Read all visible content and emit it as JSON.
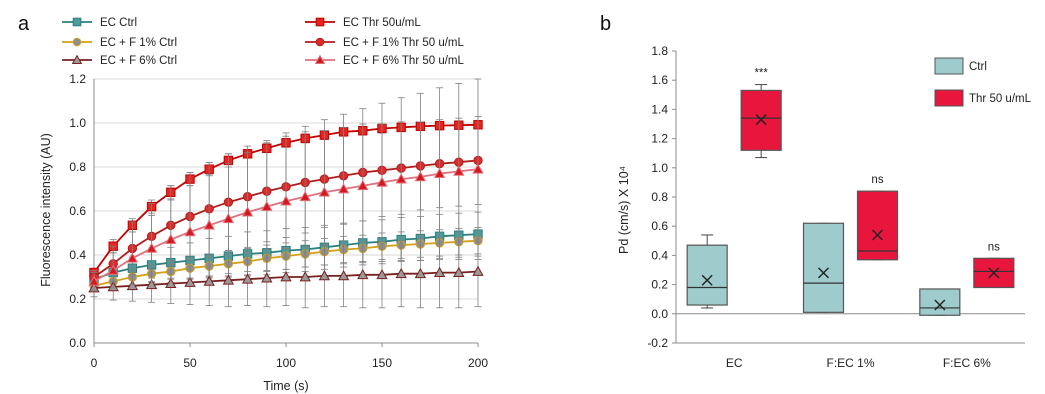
{
  "chart_data": [
    {
      "panel": "a",
      "type": "line",
      "xlabel": "Time (s)",
      "ylabel": "Fluorescence intensity (AU)",
      "xlim": [
        0,
        200
      ],
      "ylim": [
        0,
        1.2
      ],
      "x_ticks": [
        "0",
        "50",
        "100",
        "150",
        "200"
      ],
      "y_ticks": [
        "0.0",
        "0.2",
        "0.4",
        "0.6",
        "0.8",
        "1.0",
        "1.2"
      ],
      "legend_placement": "top",
      "x": [
        0,
        10,
        20,
        30,
        40,
        50,
        60,
        70,
        80,
        90,
        100,
        110,
        120,
        130,
        140,
        150,
        160,
        170,
        180,
        190,
        200
      ],
      "series": [
        {
          "name": "EC Ctrl",
          "marker": "square",
          "color": "#2d7f7f",
          "fill": "#4e9b9b",
          "values": [
            0.29,
            0.32,
            0.34,
            0.355,
            0.365,
            0.375,
            0.385,
            0.395,
            0.405,
            0.41,
            0.42,
            0.425,
            0.435,
            0.445,
            0.455,
            0.46,
            0.47,
            0.475,
            0.485,
            0.49,
            0.495
          ],
          "errors": [
            0.03,
            0.04,
            0.05,
            0.06,
            0.07,
            0.08,
            0.09,
            0.09,
            0.1,
            0.1,
            0.1,
            0.1,
            0.1,
            0.1,
            0.1,
            0.1,
            0.1,
            0.1,
            0.1,
            0.1,
            0.1
          ]
        },
        {
          "name": "EC + F 1% Ctrl",
          "marker": "circle",
          "color": "#d4a017",
          "fill": "#8e8e8e",
          "values": [
            0.26,
            0.28,
            0.3,
            0.315,
            0.325,
            0.34,
            0.35,
            0.36,
            0.37,
            0.385,
            0.395,
            0.405,
            0.415,
            0.425,
            0.43,
            0.44,
            0.445,
            0.45,
            0.455,
            0.46,
            0.465
          ],
          "errors": [
            0.02,
            0.03,
            0.04,
            0.04,
            0.05,
            0.05,
            0.05,
            0.06,
            0.06,
            0.06,
            0.06,
            0.06,
            0.06,
            0.06,
            0.06,
            0.06,
            0.06,
            0.06,
            0.06,
            0.06,
            0.06
          ]
        },
        {
          "name": "EC + F 6% Ctrl",
          "marker": "triangle",
          "color": "#7a1f1f",
          "fill": "#9a9a9a",
          "values": [
            0.25,
            0.255,
            0.26,
            0.265,
            0.27,
            0.275,
            0.28,
            0.285,
            0.29,
            0.295,
            0.3,
            0.3,
            0.305,
            0.305,
            0.31,
            0.31,
            0.315,
            0.315,
            0.32,
            0.32,
            0.325
          ],
          "errors": [
            0.04,
            0.06,
            0.07,
            0.08,
            0.09,
            0.1,
            0.11,
            0.12,
            0.12,
            0.13,
            0.13,
            0.14,
            0.14,
            0.14,
            0.15,
            0.15,
            0.15,
            0.16,
            0.16,
            0.16,
            0.16
          ]
        },
        {
          "name": "EC Thr 50u/mL",
          "marker": "square",
          "color": "#c00000",
          "fill": "#e8241f",
          "values": [
            0.32,
            0.44,
            0.535,
            0.62,
            0.685,
            0.745,
            0.79,
            0.83,
            0.86,
            0.885,
            0.91,
            0.93,
            0.945,
            0.96,
            0.965,
            0.975,
            0.98,
            0.985,
            0.988,
            0.99,
            0.992
          ],
          "errors": [
            0.02,
            0.03,
            0.03,
            0.03,
            0.03,
            0.03,
            0.03,
            0.03,
            0.02,
            0.02,
            0.02,
            0.02,
            0.02,
            0.02,
            0.02,
            0.02,
            0.01,
            0.01,
            0.01,
            0.01,
            0.01
          ]
        },
        {
          "name": "EC + F 1% Thr 50 u/mL",
          "marker": "circle",
          "color": "#b01c1c",
          "fill": "#e02a2a",
          "values": [
            0.3,
            0.36,
            0.43,
            0.485,
            0.535,
            0.575,
            0.61,
            0.64,
            0.665,
            0.69,
            0.71,
            0.73,
            0.745,
            0.76,
            0.775,
            0.785,
            0.795,
            0.805,
            0.815,
            0.822,
            0.83
          ],
          "errors": [
            0.03,
            0.08,
            0.12,
            0.15,
            0.18,
            0.2,
            0.21,
            0.22,
            0.23,
            0.23,
            0.23,
            0.23,
            0.22,
            0.22,
            0.22,
            0.21,
            0.21,
            0.2,
            0.2,
            0.2,
            0.2
          ]
        },
        {
          "name": "EC + F 6% Thr 50 u/mL",
          "marker": "triangle",
          "color": "#e0707a",
          "fill": "#d41a20",
          "values": [
            0.28,
            0.33,
            0.385,
            0.43,
            0.47,
            0.505,
            0.535,
            0.565,
            0.595,
            0.62,
            0.645,
            0.665,
            0.685,
            0.7,
            0.715,
            0.73,
            0.745,
            0.755,
            0.77,
            0.78,
            0.79
          ],
          "errors": [
            0.04,
            0.08,
            0.12,
            0.15,
            0.18,
            0.21,
            0.23,
            0.25,
            0.27,
            0.29,
            0.31,
            0.32,
            0.33,
            0.34,
            0.35,
            0.36,
            0.37,
            0.38,
            0.39,
            0.4,
            0.41
          ]
        }
      ]
    },
    {
      "panel": "b",
      "type": "box",
      "ylabel": "Pd (cm/s) X 10⁴",
      "ylim": [
        -0.2,
        1.8
      ],
      "y_ticks": [
        "-0.2",
        "0.0",
        "0.2",
        "0.4",
        "0.6",
        "0.8",
        "1.0",
        "1.2",
        "1.4",
        "1.6",
        "1.8"
      ],
      "categories": [
        "EC",
        "F:EC 1%",
        "F:EC 6%"
      ],
      "legend_placement": "top-right",
      "groups": [
        {
          "name": "Ctrl",
          "color": "#9ecbcb",
          "stroke": "#555555"
        },
        {
          "name": "Thr 50 u/mL",
          "color": "#e8163c",
          "stroke": "#555555"
        }
      ],
      "boxes": [
        {
          "category": "EC",
          "group": "Ctrl",
          "min": 0.04,
          "q1": 0.06,
          "median": 0.18,
          "q3": 0.47,
          "max": 0.54,
          "mean": 0.23,
          "annotation": ""
        },
        {
          "category": "EC",
          "group": "Thr 50 u/mL",
          "min": 1.07,
          "q1": 1.12,
          "median": 1.34,
          "q3": 1.53,
          "max": 1.57,
          "mean": 1.33,
          "annotation": "***"
        },
        {
          "category": "F:EC 1%",
          "group": "Ctrl",
          "min": 0.01,
          "q1": 0.01,
          "median": 0.21,
          "q3": 0.62,
          "max": 0.62,
          "mean": 0.28,
          "annotation": ""
        },
        {
          "category": "F:EC 1%",
          "group": "Thr 50 u/mL",
          "min": 0.37,
          "q1": 0.37,
          "median": 0.43,
          "q3": 0.84,
          "max": 0.84,
          "mean": 0.54,
          "annotation": "ns"
        },
        {
          "category": "F:EC 6%",
          "group": "Ctrl",
          "min": -0.01,
          "q1": -0.01,
          "median": 0.04,
          "q3": 0.17,
          "max": 0.17,
          "mean": 0.06,
          "annotation": ""
        },
        {
          "category": "F:EC 6%",
          "group": "Thr 50 u/mL",
          "min": 0.18,
          "q1": 0.18,
          "median": 0.29,
          "q3": 0.38,
          "max": 0.38,
          "mean": 0.28,
          "annotation": "ns"
        }
      ]
    }
  ]
}
